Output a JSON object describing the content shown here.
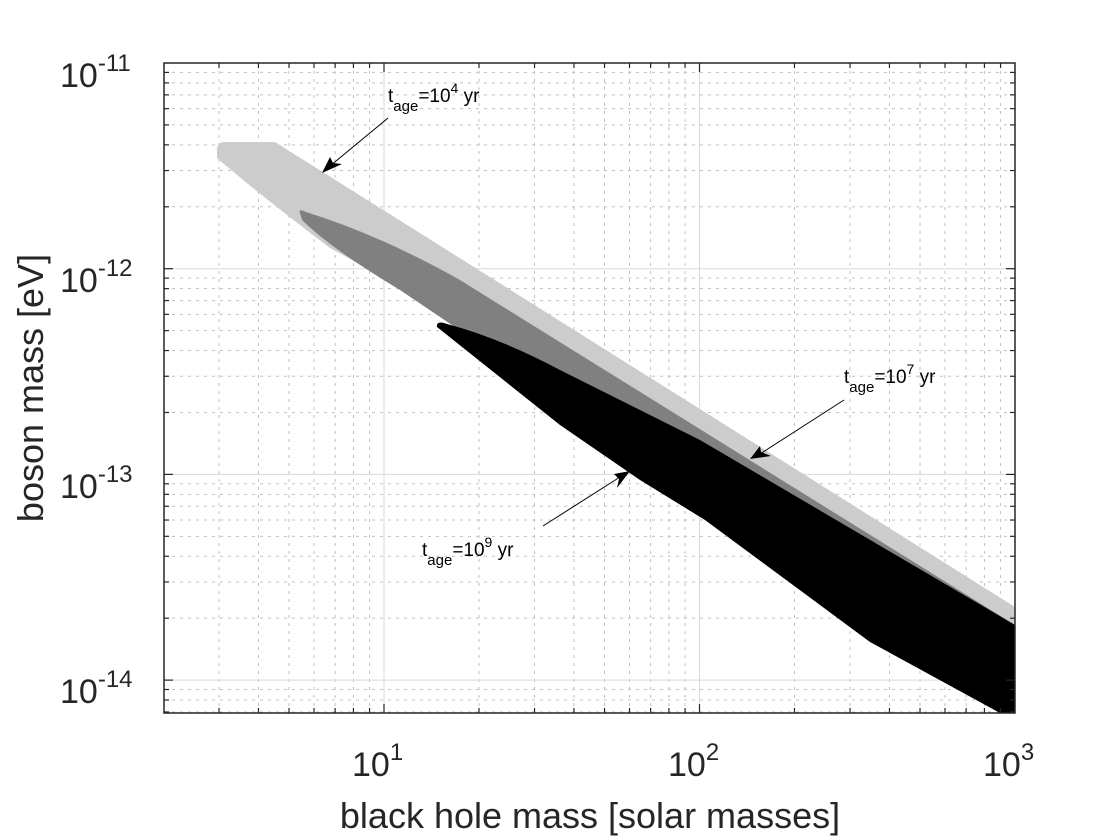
{
  "chart_data": {
    "type": "area",
    "title": "",
    "xlabel": "black hole mass [solar masses]",
    "ylabel": "boson mass [eV]",
    "xscale": "log",
    "yscale": "log",
    "xlim": [
      2,
      1000
    ],
    "ylim": [
      6.9e-15,
      1e-11
    ],
    "grid": true,
    "minor_grid": true,
    "x_ticks": [
      {
        "base": "10",
        "exp": "1",
        "value": 10
      },
      {
        "base": "10",
        "exp": "2",
        "value": 100
      },
      {
        "base": "10",
        "exp": "3",
        "value": 1000
      }
    ],
    "y_ticks": [
      {
        "base": "10",
        "exp": "-11",
        "value": 1e-11
      },
      {
        "base": "10",
        "exp": "-12",
        "value": 1e-12
      },
      {
        "base": "10",
        "exp": "-13",
        "value": 1e-13
      },
      {
        "base": "10",
        "exp": "-14",
        "value": 1e-14
      }
    ],
    "series": [
      {
        "name": "t_age=10^4 yr",
        "color": "#cccccc",
        "description": "exclusion region for black hole age 10^4 yr",
        "boundary_points": [
          [
            3.0,
            4e-12
          ],
          [
            4.5,
            4e-12
          ],
          [
            10,
            2.2e-12
          ],
          [
            100,
            2.6e-13
          ],
          [
            1000,
            2.2e-14
          ],
          [
            1000,
            1.9e-14
          ],
          [
            100,
            1.9e-13
          ],
          [
            20,
            9e-13
          ],
          [
            10,
            1.3e-12
          ],
          [
            5.5,
            2.2e-12
          ],
          [
            3.0,
            3.6e-12
          ]
        ]
      },
      {
        "name": "t_age=10^7 yr",
        "color": "#808080",
        "description": "exclusion region for black hole age 10^7 yr",
        "boundary_points": [
          [
            5.5,
            1.8e-12
          ],
          [
            10,
            1.5e-12
          ],
          [
            30,
            8e-13
          ],
          [
            100,
            2.3e-13
          ],
          [
            1000,
            1.8e-14
          ],
          [
            1000,
            1.4e-14
          ],
          [
            100,
            1.4e-13
          ],
          [
            30,
            4.5e-13
          ],
          [
            10,
            1.1e-12
          ],
          [
            5.5,
            1.7e-12
          ]
        ]
      },
      {
        "name": "t_age=10^9 yr",
        "color": "#000000",
        "description": "exclusion region for black hole age 10^9 yr",
        "boundary_points": [
          [
            15,
            5.3e-13
          ],
          [
            30,
            3.8e-13
          ],
          [
            100,
            1.5e-13
          ],
          [
            1000,
            1.5e-14
          ],
          [
            1000,
            7e-15
          ],
          [
            400,
            1.5e-14
          ],
          [
            150,
            4.5e-14
          ],
          [
            100,
            6.5e-14
          ],
          [
            40,
            1.6e-13
          ],
          [
            15,
            4.7e-13
          ]
        ]
      }
    ],
    "annotations": [
      {
        "text_main": "t",
        "text_sub": "age",
        "text_eq": "=10",
        "text_sup": "4",
        "text_unit": " yr",
        "arrow_target": [
          6.0,
          2.9e-12
        ]
      },
      {
        "text_main": "t",
        "text_sub": "age",
        "text_eq": "=10",
        "text_sup": "7",
        "text_unit": " yr",
        "arrow_target": [
          140,
          1.1e-13
        ]
      },
      {
        "text_main": "t",
        "text_sub": "age",
        "text_eq": "=10",
        "text_sup": "9",
        "text_unit": " yr",
        "arrow_target": [
          60,
          1.05e-13
        ]
      }
    ]
  },
  "axes": {
    "x_label": "black hole mass [solar masses]",
    "y_label": "boson mass [eV]",
    "x_ticks": [
      {
        "base": "10",
        "exp": "1"
      },
      {
        "base": "10",
        "exp": "2"
      },
      {
        "base": "10",
        "exp": "3"
      }
    ],
    "y_ticks": [
      {
        "base": "10",
        "exp": "-11"
      },
      {
        "base": "10",
        "exp": "-12"
      },
      {
        "base": "10",
        "exp": "-13"
      },
      {
        "base": "10",
        "exp": "-14"
      }
    ]
  },
  "annotations": [
    {
      "t": "t",
      "sub": "age",
      "eq": "=10",
      "sup": "4",
      "unit": " yr"
    },
    {
      "t": "t",
      "sub": "age",
      "eq": "=10",
      "sup": "7",
      "unit": " yr"
    },
    {
      "t": "t",
      "sub": "age",
      "eq": "=10",
      "sup": "9",
      "unit": " yr"
    }
  ],
  "colors": {
    "region_1e4": "#cccccc",
    "region_1e7": "#808080",
    "region_1e9": "#000000",
    "grid": "#c8c8c8",
    "axis": "#262626"
  }
}
